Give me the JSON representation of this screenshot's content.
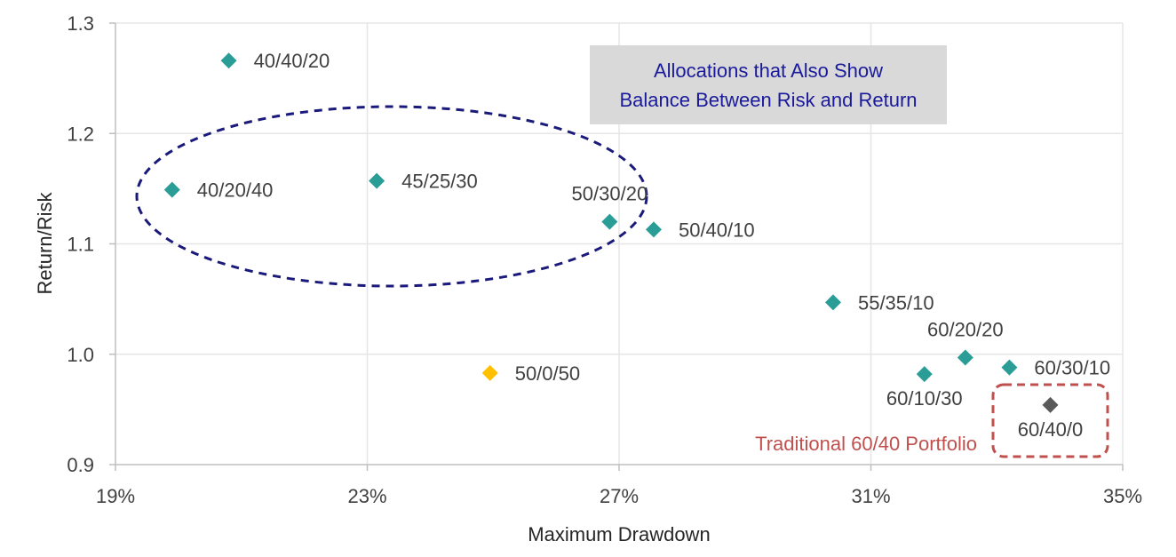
{
  "chart_data": {
    "type": "scatter",
    "xlabel": "Maximum Drawdown",
    "ylabel": "Return/Risk",
    "xlim": [
      19,
      35
    ],
    "ylim": [
      0.9,
      1.3
    ],
    "x_ticks": [
      19,
      23,
      27,
      31,
      35
    ],
    "x_tick_labels": [
      "19%",
      "23%",
      "27%",
      "31%",
      "35%"
    ],
    "y_ticks": [
      0.9,
      1.0,
      1.1,
      1.2,
      1.3
    ],
    "y_tick_labels": [
      "0.9",
      "1.0",
      "1.1",
      "1.2",
      "1.3"
    ],
    "grid": true,
    "points": [
      {
        "label": "40/40/20",
        "x": 20.8,
        "y": 1.266,
        "color": "#2a9d97",
        "label_pos": "right"
      },
      {
        "label": "40/20/40",
        "x": 19.9,
        "y": 1.149,
        "color": "#2a9d97",
        "label_pos": "right"
      },
      {
        "label": "45/25/30",
        "x": 23.15,
        "y": 1.157,
        "color": "#2a9d97",
        "label_pos": "right"
      },
      {
        "label": "50/30/20",
        "x": 26.85,
        "y": 1.12,
        "color": "#2a9d97",
        "label_pos": "above"
      },
      {
        "label": "50/40/10",
        "x": 27.55,
        "y": 1.113,
        "color": "#2a9d97",
        "label_pos": "right"
      },
      {
        "label": "50/0/50",
        "x": 24.95,
        "y": 0.983,
        "color": "#ffc000",
        "label_pos": "right"
      },
      {
        "label": "55/35/10",
        "x": 30.4,
        "y": 1.047,
        "color": "#2a9d97",
        "label_pos": "right"
      },
      {
        "label": "60/10/30",
        "x": 31.85,
        "y": 0.982,
        "color": "#2a9d97",
        "label_pos": "below"
      },
      {
        "label": "60/20/20",
        "x": 32.5,
        "y": 0.997,
        "color": "#2a9d97",
        "label_pos": "above"
      },
      {
        "label": "60/30/10",
        "x": 33.2,
        "y": 0.988,
        "color": "#2a9d97",
        "label_pos": "right"
      },
      {
        "label": "60/40/0",
        "x": 33.85,
        "y": 0.954,
        "color": "#595959",
        "label_pos": "below"
      }
    ],
    "annotations": {
      "callout_lines": [
        "Allocations that Also Show",
        "Balance Between Risk and Return"
      ],
      "callout_text_color": "#1a1a9c",
      "callout_bg_color": "#d9d9d9",
      "ellipse_color": "#1a1a7a",
      "traditional_label": "Traditional 60/40 Portfolio",
      "traditional_color": "#c0504d"
    }
  }
}
